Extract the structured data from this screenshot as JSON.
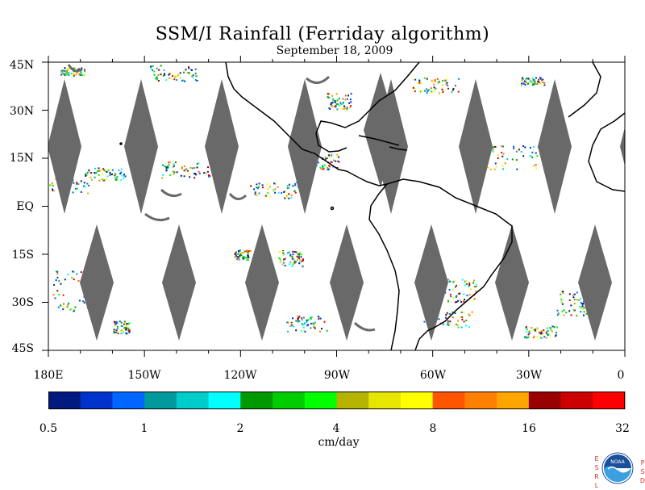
{
  "title": "SSM/I Rainfall (Ferriday algorithm)",
  "date": "September 18, 2009",
  "lat_labels": [
    "45N",
    "30N",
    "15N",
    "EQ",
    "15S",
    "30S",
    "45S"
  ],
  "lon_labels": [
    "180E",
    "150W",
    "120W",
    "90W",
    "60W",
    "30W",
    "0"
  ],
  "colorbar": {
    "tick_labels": [
      "0.5",
      "1",
      "2",
      "4",
      "8",
      "16",
      "32"
    ],
    "units": "cm/day",
    "colors": [
      "#001a80",
      "#0033cc",
      "#0066ff",
      "#00999c",
      "#00cccc",
      "#00ffff",
      "#009900",
      "#00cc00",
      "#00ff00",
      "#b3b300",
      "#e6e600",
      "#ffff00",
      "#ff5500",
      "#ff8000",
      "#ffa500",
      "#990000",
      "#cc0000",
      "#ff0000"
    ]
  },
  "colors": {
    "no_data_gap": "#696969",
    "coastline": "#000000"
  },
  "logo": {
    "left_letters": "ESRL",
    "right_letters": "PSD",
    "center_text": "NOAA"
  }
}
